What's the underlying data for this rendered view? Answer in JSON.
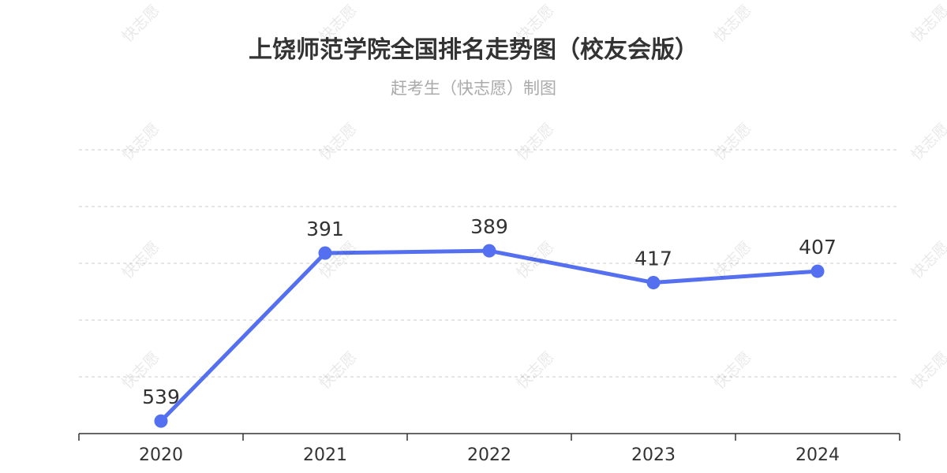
{
  "title": "上饶师范学院全国排名走势图（校友会版）",
  "subtitle": "赶考生（快志愿）制图",
  "watermark": "快志愿",
  "colors": {
    "line": "#5470f0",
    "grid": "#cccccc",
    "axis": "#333333",
    "label": "#333333"
  },
  "chart_data": {
    "type": "line",
    "title": "上饶师范学院全国排名走势图（校友会版）",
    "subtitle": "赶考生（快志愿）制图",
    "categories": [
      "2020",
      "2021",
      "2022",
      "2023",
      "2024"
    ],
    "series": [
      {
        "values": [
          539,
          391,
          389,
          417,
          407
        ]
      }
    ],
    "y_inverse": true,
    "ylim": [
      300,
      550
    ],
    "y_axis_labels_shown": false,
    "grid": true,
    "legend": "none",
    "data_labels": true
  }
}
